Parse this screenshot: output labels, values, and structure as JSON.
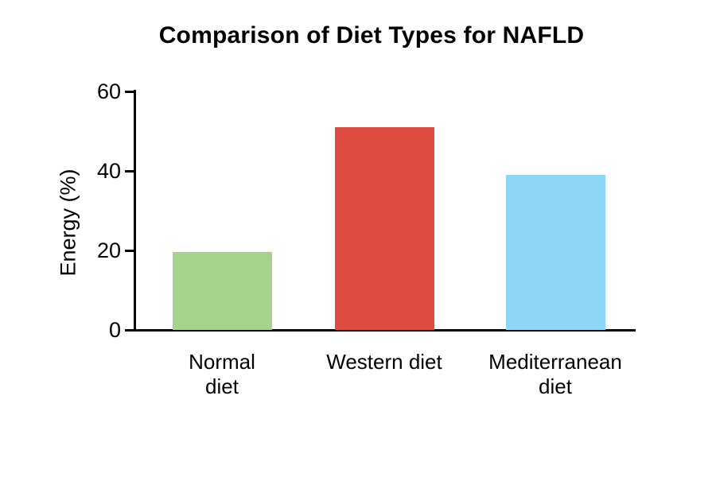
{
  "chart_data": {
    "type": "bar",
    "title": "Comparison of Diet Types for NAFLD",
    "xlabel": "",
    "ylabel": "Energy (%)",
    "categories": [
      "Normal diet",
      "Western diet",
      "Mediterranean diet"
    ],
    "category_lines": [
      [
        "Normal",
        "diet"
      ],
      [
        "Western diet"
      ],
      [
        "Mediterranean",
        "diet"
      ]
    ],
    "values": [
      19.7,
      51,
      39
    ],
    "bar_colors": [
      "#a5d28c",
      "#df4b41",
      "#8ed6f5"
    ],
    "ylim": [
      0,
      60
    ],
    "yticks": [
      0,
      20,
      40,
      60
    ],
    "grid": false,
    "legend": null,
    "axis_color": "#000000",
    "text_color": "#000000",
    "background_color": "#ffffff"
  }
}
